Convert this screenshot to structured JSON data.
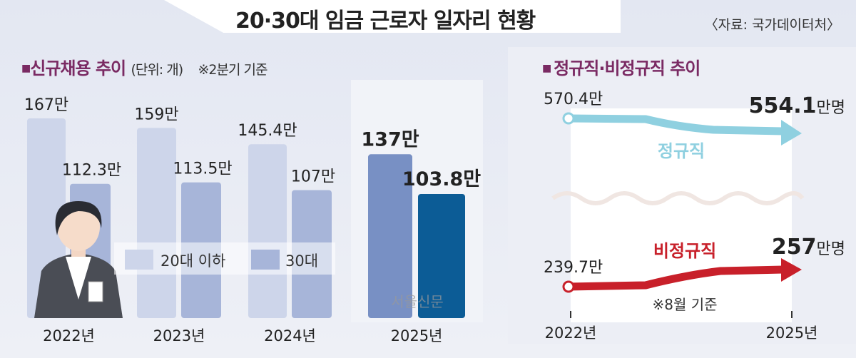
{
  "title": "20·30대 임금 근로자 일자리 현황",
  "source": "〈자료: 국가데이터처〉",
  "watermark": "서울신문",
  "colors": {
    "age20": "#cdd5ea",
    "age30": "#a7b5d9",
    "age20_2025": "#7890c4",
    "age30_2025": "#0c5c96",
    "regular": "#8fd0e0",
    "nonregular": "#c8202a",
    "heading": "#7a2a63"
  },
  "chart_data": [
    {
      "type": "bar",
      "title": "신규채용 추이",
      "unit": "(단위: 개)",
      "note": "※2분기 기준",
      "categories": [
        "2022년",
        "2023년",
        "2024년",
        "2025년"
      ],
      "series": [
        {
          "name": "20대 이하",
          "values": [
            167,
            159,
            145.4,
            137
          ],
          "labels": [
            "167만",
            "159만",
            "145.4만",
            "137만"
          ]
        },
        {
          "name": "30대",
          "values": [
            112.3,
            113.5,
            107,
            103.8
          ],
          "labels": [
            "112.3만",
            "113.5만",
            "107만",
            "103.8만"
          ]
        }
      ],
      "ylim": [
        0,
        170
      ]
    },
    {
      "type": "line",
      "title": "정규직·비정규직 추이",
      "note": "※8월 기준",
      "categories": [
        "2022년",
        "2025년"
      ],
      "series": [
        {
          "name": "정규직",
          "values": [
            570.4,
            554.1
          ],
          "start_label": "570.4만",
          "end_value": "554.1",
          "end_unit": "만명"
        },
        {
          "name": "비정규직",
          "values": [
            239.7,
            257
          ],
          "start_label": "239.7만",
          "end_value": "257",
          "end_unit": "만명"
        }
      ]
    }
  ]
}
